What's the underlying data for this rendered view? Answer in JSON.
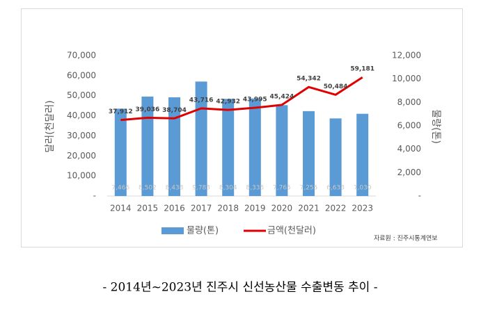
{
  "chart_data": {
    "type": "combo",
    "categories": [
      "2014",
      "2015",
      "2016",
      "2017",
      "2018",
      "2019",
      "2020",
      "2021",
      "2022",
      "2023"
    ],
    "series": [
      {
        "name": "물량(톤)",
        "type": "bar",
        "axis": "y2",
        "color": "#5b9bd5",
        "values": [
          7466,
          8502,
          8438,
          9783,
          8304,
          8335,
          7765,
          7255,
          6633,
          7030
        ],
        "value_labels": [
          "7,466",
          "8,502",
          "8,438",
          "9,783",
          "8,304",
          "8,335",
          "7,765",
          "7,255",
          "6,633",
          "7,030"
        ]
      },
      {
        "name": "금액(천달러)",
        "type": "line",
        "color": "#e00000",
        "values": [
          37912,
          39036,
          38704,
          43716,
          42932,
          43995,
          45424,
          54342,
          50484,
          59181
        ],
        "value_labels": [
          "37,912",
          "39,036",
          "38,704",
          "43,716",
          "42,932",
          "43,995",
          "45,424",
          "54,342",
          "50,484",
          "59,181"
        ]
      }
    ],
    "ylabel": "달러(천달러)",
    "y2label": "물량(톤)",
    "ylim": [
      0,
      70000
    ],
    "yticks": [
      {
        "value": 0,
        "label": "-"
      },
      {
        "value": 10000,
        "label": "10,000"
      },
      {
        "value": 20000,
        "label": "20,000"
      },
      {
        "value": 30000,
        "label": "30,000"
      },
      {
        "value": 40000,
        "label": "40,000"
      },
      {
        "value": 50000,
        "label": "50,000"
      },
      {
        "value": 60000,
        "label": "60,000"
      },
      {
        "value": 70000,
        "label": "70,000"
      }
    ],
    "y2lim": [
      0,
      12000
    ],
    "y2ticks": [
      {
        "value": 0,
        "label": "-"
      },
      {
        "value": 2000,
        "label": "2,000"
      },
      {
        "value": 4000,
        "label": "4,000"
      },
      {
        "value": 6000,
        "label": "6,000"
      },
      {
        "value": 8000,
        "label": "8,000"
      },
      {
        "value": 10000,
        "label": "10,000"
      },
      {
        "value": 12000,
        "label": "12,000"
      }
    ],
    "source": "자료원 : 진주시통계연보",
    "caption": "- 2014년~2023년 진주시 신선농산물 수출변동 추이 -"
  }
}
